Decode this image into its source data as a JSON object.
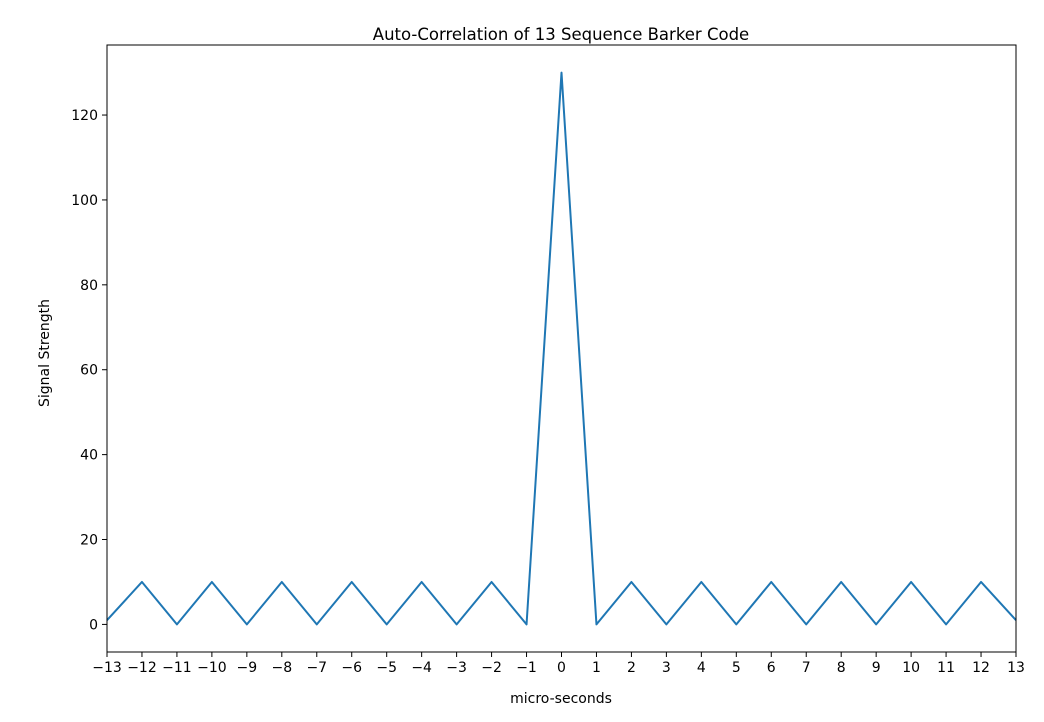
{
  "chart_data": {
    "type": "line",
    "title": "Auto-Correlation of 13 Sequence Barker Code",
    "xlabel": "micro-seconds",
    "ylabel": "Signal Strength",
    "xlim": [
      -13,
      13
    ],
    "ylim": [
      -6.5,
      136.5
    ],
    "x_ticks": [
      -13,
      -12,
      -11,
      -10,
      -9,
      -8,
      -7,
      -6,
      -5,
      -4,
      -3,
      -2,
      -1,
      0,
      1,
      2,
      3,
      4,
      5,
      6,
      7,
      8,
      9,
      10,
      11,
      12,
      13
    ],
    "x_tick_labels": [
      "−13",
      "−12",
      "−11",
      "−10",
      "−9",
      "−8",
      "−7",
      "−6",
      "−5",
      "−4",
      "−3",
      "−2",
      "−1",
      "0",
      "1",
      "2",
      "3",
      "4",
      "5",
      "6",
      "7",
      "8",
      "9",
      "10",
      "11",
      "12",
      "13"
    ],
    "y_ticks": [
      0,
      20,
      40,
      60,
      80,
      100,
      120
    ],
    "y_tick_labels": [
      "0",
      "20",
      "40",
      "60",
      "80",
      "100",
      "120"
    ],
    "grid": false,
    "line_color": "#1f77b4",
    "series": [
      {
        "x": [
          -13,
          -12,
          -11,
          -10,
          -9,
          -8,
          -7,
          -6,
          -5,
          -4,
          -3,
          -2,
          -1,
          0,
          1,
          2,
          3,
          4,
          5,
          6,
          7,
          8,
          9,
          10,
          11,
          12,
          13
        ],
        "values": [
          1,
          10,
          0,
          10,
          0,
          10,
          0,
          10,
          0,
          10,
          0,
          10,
          0,
          130,
          0,
          10,
          0,
          10,
          0,
          10,
          0,
          10,
          0,
          10,
          0,
          10,
          1
        ]
      }
    ]
  }
}
